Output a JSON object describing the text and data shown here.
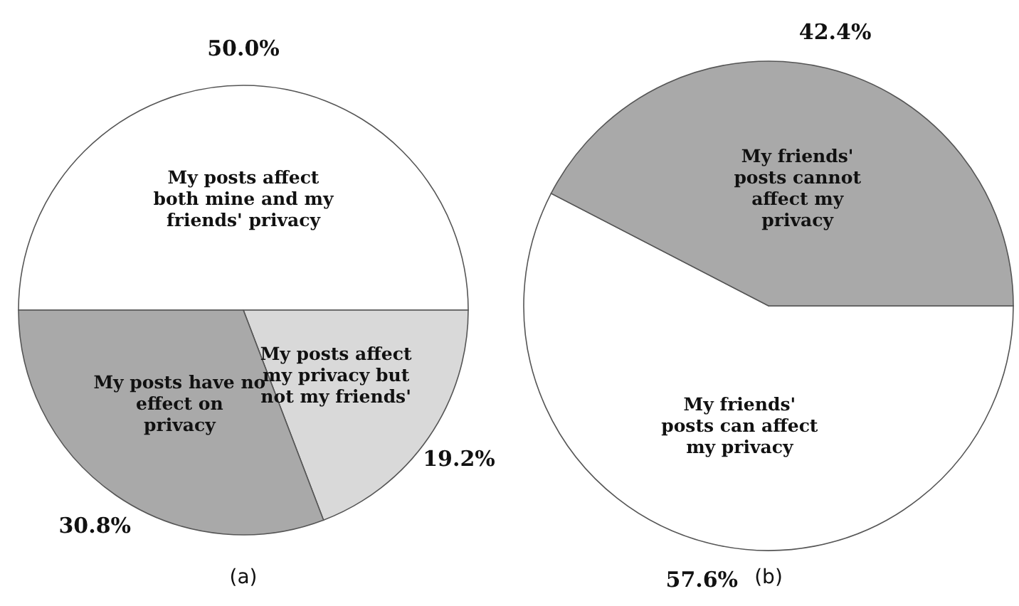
{
  "chart_data": [
    {
      "type": "pie",
      "categories": [
        "My posts affect both mine and my friends' privacy",
        "My posts affect my privacy but not my friends'",
        "My posts have no effect on privacy"
      ],
      "values": [
        50.0,
        19.2,
        30.8
      ],
      "colors": [
        "#ffffff",
        "#d9d9d9",
        "#a9a9a9"
      ],
      "value_labels": [
        "50.0%",
        "19.2%",
        "30.8%"
      ],
      "annotations": [
        "(a)"
      ]
    },
    {
      "type": "pie",
      "categories": [
        "My friends' posts can affect my privacy",
        "My friends' posts cannot affect my privacy"
      ],
      "values": [
        57.6,
        42.4
      ],
      "colors": [
        "#ffffff",
        "#a9a9a9"
      ],
      "value_labels": [
        "57.6%",
        "42.4%"
      ],
      "annotations": [
        "(b)"
      ]
    }
  ]
}
